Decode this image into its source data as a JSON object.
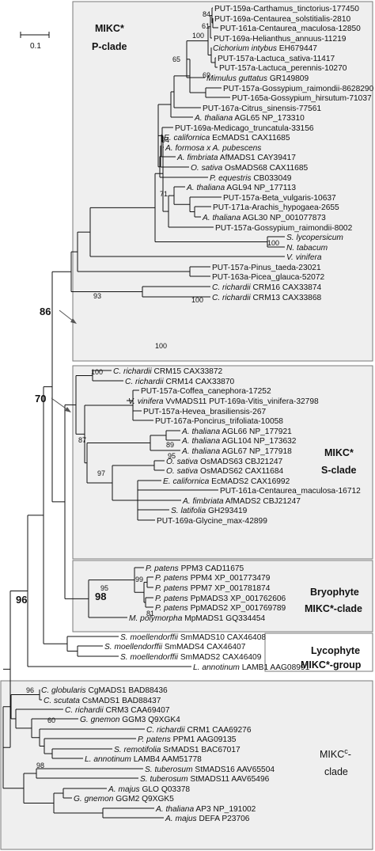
{
  "scale_bar": {
    "label": "0.1"
  },
  "clades": {
    "p": {
      "line1": "MIKC*",
      "line2": "P-clade"
    },
    "s": {
      "line1": "MIKC*",
      "line2": "S-clade"
    },
    "bryo": {
      "line1": "Bryophyte",
      "line2": "MIKC*-clade"
    },
    "lyco": {
      "line1": "Lycophyte",
      "line2": "MIKC*-group"
    },
    "c": {
      "line1_main": "MIKC",
      "line1_sup": "c",
      "line1_suffix": "-",
      "line2": "clade"
    }
  },
  "leaves": [
    {
      "id": "L1",
      "italic": "",
      "rest": "PUT-159a-Carthamus_tinctorius-177450"
    },
    {
      "id": "L2",
      "italic": "",
      "rest": "PUT-169a-Centaurea_solstitialis-2810"
    },
    {
      "id": "L3",
      "italic": "",
      "rest": "PUT-161a-Centaurea_maculosa-12850"
    },
    {
      "id": "L4",
      "italic": "",
      "rest": "PUT-169a-Helianthus_annuus-11219"
    },
    {
      "id": "L5",
      "italic": "Cichorium intybus",
      "rest": " EH679447"
    },
    {
      "id": "L6",
      "italic": "",
      "rest": "PUT-157a-Lactuca_sativa-11417"
    },
    {
      "id": "L7",
      "italic": "",
      "rest": "PUT-157a-Lactuca_perennis-10270"
    },
    {
      "id": "L8",
      "italic": "Mimulus guttatus",
      "rest": " GR149809"
    },
    {
      "id": "L9",
      "italic": "",
      "rest": "PUT-157a-Gossypium_raimondii-8628290"
    },
    {
      "id": "L10",
      "italic": "",
      "rest": "PUT-165a-Gossypium_hirsutum-71037"
    },
    {
      "id": "L11",
      "italic": "",
      "rest": "PUT-167a-Citrus_sinensis-77561"
    },
    {
      "id": "L12",
      "italic": "A. thaliana",
      "rest": " AGL65  NP_173310"
    },
    {
      "id": "L13",
      "italic": "",
      "rest": "PUT-169a-Medicago_truncatula-33156"
    },
    {
      "id": "L14",
      "italic": "E. californica",
      "rest": " EcMADS1 CAX11685"
    },
    {
      "id": "L15",
      "italic": "A. formosa x A. pubescens",
      "rest": ""
    },
    {
      "id": "L16",
      "italic": "A. fimbriata",
      "rest": " AfMADS1 CAY39417"
    },
    {
      "id": "L17",
      "italic": "O. sativa",
      "rest": " OsMADS68 CAX11685"
    },
    {
      "id": "L18",
      "italic": "P. equestris",
      "rest": " CB033049"
    },
    {
      "id": "L19",
      "italic": "A. thaliana",
      "rest": " AGL94  NP_177113"
    },
    {
      "id": "L20",
      "italic": "",
      "rest": "PUT-157a-Beta_vulgaris-10637"
    },
    {
      "id": "L21",
      "italic": "",
      "rest": "PUT-171a-Arachis_hypogaea-2655"
    },
    {
      "id": "L22",
      "italic": "A. thaliana",
      "rest": " AGL30 NP_001077873"
    },
    {
      "id": "L23",
      "italic": "",
      "rest": "PUT-157a-Gossypium_raimondii-8002"
    },
    {
      "id": "L24",
      "italic": "S. lycopersicum",
      "rest": ""
    },
    {
      "id": "L25",
      "italic": "N. tabacum",
      "rest": ""
    },
    {
      "id": "L26",
      "italic": "V. vinifera",
      "rest": ""
    },
    {
      "id": "L27",
      "italic": "",
      "rest": "PUT-157a-Pinus_taeda-23021"
    },
    {
      "id": "L28",
      "italic": "",
      "rest": "PUT-163a-Picea_glauca-52072"
    },
    {
      "id": "L29",
      "italic": "C. richardii",
      "rest": " CRM16 CAX33874"
    },
    {
      "id": "L30",
      "italic": "C. richardii",
      "rest": " CRM13 CAX33868"
    },
    {
      "id": "L31",
      "italic": "C. richardii",
      "rest": " CRM15 CAX33872"
    },
    {
      "id": "L32",
      "italic": "C. richardii",
      "rest": " CRM14  CAX33870"
    },
    {
      "id": "L33",
      "italic": "",
      "rest": "PUT-157a-Coffea_canephora-17252"
    },
    {
      "id": "L34",
      "italic": "V. vinifera",
      "rest": " VvMADS11 PUT-169a-Vitis_vinifera-32798"
    },
    {
      "id": "L35",
      "italic": "",
      "rest": "PUT-157a-Hevea_brasiliensis-267"
    },
    {
      "id": "L36",
      "italic": "",
      "rest": "PUT-167a-Poncirus_trifoliata-10058"
    },
    {
      "id": "L37",
      "italic": "A. thaliana",
      "rest": " AGL66  NP_177921"
    },
    {
      "id": "L38",
      "italic": "A. thaliana",
      "rest": " AGL104 NP_173632"
    },
    {
      "id": "L39",
      "italic": "A. thaliana",
      "rest": " AGL67  NP_177918"
    },
    {
      "id": "L40",
      "italic": "O. sativa",
      "rest": " OsMADS63 CBJ21247"
    },
    {
      "id": "L41",
      "italic": "O. sativa",
      "rest": " OsMADS62 CAX11684"
    },
    {
      "id": "L42",
      "italic": "E. californica",
      "rest": " EcMADS2 CAX16992"
    },
    {
      "id": "L43",
      "italic": "",
      "rest": "PUT-161a-Centaurea_maculosa-16712"
    },
    {
      "id": "L44",
      "italic": "A. fimbriata",
      "rest": " AfMADS2 CBJ21247"
    },
    {
      "id": "L45",
      "italic": "S. latifolia",
      "rest": " GH293419"
    },
    {
      "id": "L46",
      "italic": "",
      "rest": "PUT-169a-Glycine_max-42899"
    },
    {
      "id": "L47",
      "italic": "P. patens",
      "rest": " PPM3 CAD11675"
    },
    {
      "id": "L48",
      "italic": "P. patens",
      "rest": " PPM4 XP_001773479"
    },
    {
      "id": "L49",
      "italic": "P. patens",
      "rest": " PPM7 XP_001781874"
    },
    {
      "id": "L50",
      "italic": "P. patens",
      "rest": " PpMADS3 XP_001762606"
    },
    {
      "id": "L51",
      "italic": "P. patens",
      "rest": " PpMADS2 XP_001769789"
    },
    {
      "id": "L52",
      "italic": "M. polymorpha",
      "rest": " MpMADS1 GQ334454"
    },
    {
      "id": "L53",
      "italic": "S. moellendorffii",
      "rest": " SmMADS10 CAX46408"
    },
    {
      "id": "L54",
      "italic": "S. moellendorffii",
      "rest": " SmMADS4 CAX46407"
    },
    {
      "id": "L55",
      "italic": "S. moellendorffii",
      "rest": " SmMADS2 CAX46409"
    },
    {
      "id": "L56",
      "italic": "L. annotinum",
      "rest": " LAMB1 AAG08991"
    },
    {
      "id": "L57",
      "italic": "C. globularis",
      "rest": " CgMADS1 BAD88436"
    },
    {
      "id": "L58",
      "italic": "C. scutata",
      "rest": " CsMADS1 BAD88437"
    },
    {
      "id": "L59",
      "italic": "C. richardii",
      "rest": " CRM3  CAA69407"
    },
    {
      "id": "L60",
      "italic": "G. gnemon",
      "rest": " GGM3 Q9XGK4"
    },
    {
      "id": "L61",
      "italic": "C. richardii",
      "rest": " CRM1  CAA69276"
    },
    {
      "id": "L62",
      "italic": "P. patens",
      "rest": " PPM1 AAG09135"
    },
    {
      "id": "L63",
      "italic": "S. remotifolia",
      "rest": " SrMADS1 BAC67017"
    },
    {
      "id": "L64",
      "italic": "L. annotinum",
      "rest": " LAMB4 AAM51778"
    },
    {
      "id": "L65",
      "italic": "S. tuberosum",
      "rest": " StMADS16 AAV65504"
    },
    {
      "id": "L66",
      "italic": "S. tuberosum",
      "rest": " StMADS11 AAV65496"
    },
    {
      "id": "L67",
      "italic": "A. majus",
      "rest": " GLO Q03378"
    },
    {
      "id": "L68",
      "italic": "G. gnemon",
      "rest": " GGM2 Q9XGK5"
    },
    {
      "id": "L69",
      "italic": "A. thaliana",
      "rest": " AP3 NP_191002"
    },
    {
      "id": "L70",
      "italic": "A. majus",
      "rest": " DEFA P23706"
    }
  ],
  "support_values": [
    {
      "id": "S84",
      "value": "84"
    },
    {
      "id": "S61",
      "value": "61"
    },
    {
      "id": "S100a",
      "value": "100"
    },
    {
      "id": "S65",
      "value": "65"
    },
    {
      "id": "S69",
      "value": "69"
    },
    {
      "id": "S94",
      "value": "94"
    },
    {
      "id": "S71",
      "value": "71"
    },
    {
      "id": "S100b",
      "value": "100"
    },
    {
      "id": "S93",
      "value": "93"
    },
    {
      "id": "S100c",
      "value": "100"
    },
    {
      "id": "S100d",
      "value": "100"
    },
    {
      "id": "S100e",
      "value": "100"
    },
    {
      "id": "S87",
      "value": "87"
    },
    {
      "id": "S89",
      "value": "89"
    },
    {
      "id": "S95a",
      "value": "95"
    },
    {
      "id": "S97",
      "value": "97"
    },
    {
      "id": "S95b",
      "value": "95"
    },
    {
      "id": "S99",
      "value": "99"
    },
    {
      "id": "S81",
      "value": "81"
    },
    {
      "id": "S96c",
      "value": "96"
    },
    {
      "id": "S60",
      "value": "60"
    },
    {
      "id": "S98c",
      "value": "98"
    }
  ],
  "major_support": [
    {
      "id": "B86",
      "value": "86"
    },
    {
      "id": "B70",
      "value": "70"
    },
    {
      "id": "B96",
      "value": "96"
    },
    {
      "id": "B98",
      "value": "98"
    }
  ],
  "colors": {
    "box_fill": "#efefef",
    "box_stroke": "#7a7a7a",
    "line": "#111111",
    "arrow": "#555555"
  }
}
